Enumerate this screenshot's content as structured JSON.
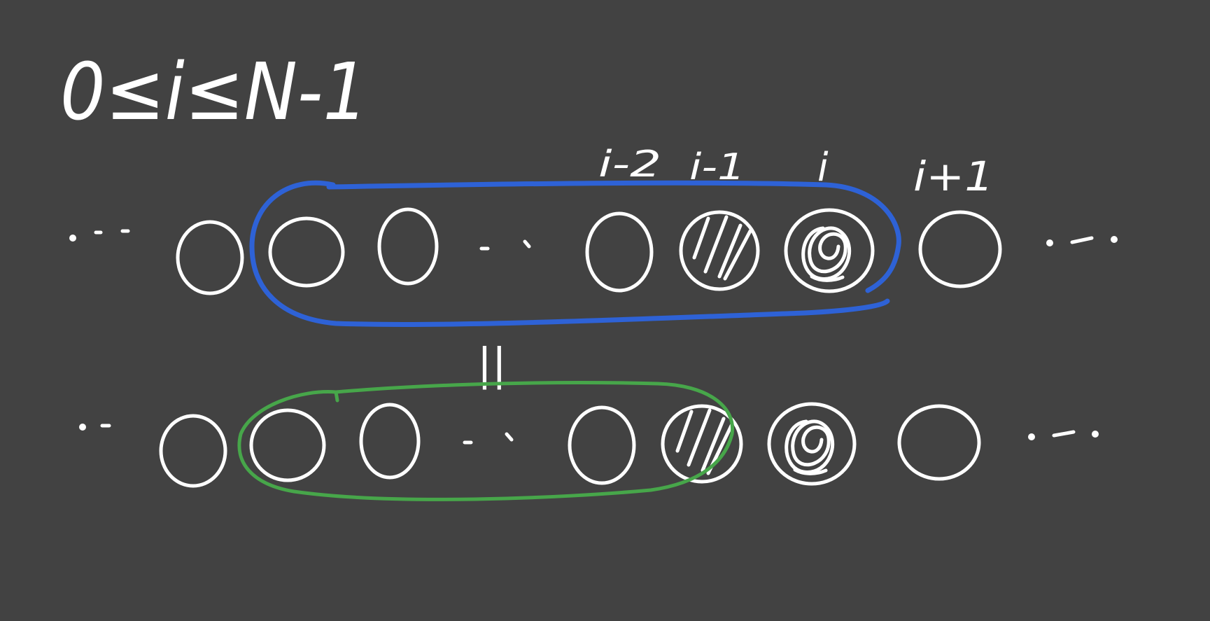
{
  "colors": {
    "background": "#424242",
    "ink": "#ffffff",
    "upper_loop": "#2e62d6",
    "lower_loop": "#47a64a"
  },
  "condition": {
    "text": "0≤i≤N-1"
  },
  "index_labels": {
    "i_minus_2": "i-2",
    "i_minus_1": "i-1",
    "i": "i",
    "i_plus_1": "i+1"
  },
  "equals_mark": "||",
  "rows": [
    {
      "name": "upper",
      "nodes": [
        "empty",
        "empty",
        "empty",
        "ellipsis",
        "empty",
        "hatched",
        "spiral",
        "empty"
      ],
      "loop_color": "upper_loop"
    },
    {
      "name": "lower",
      "nodes": [
        "empty",
        "empty",
        "empty",
        "ellipsis",
        "empty",
        "hatched",
        "spiral",
        "empty"
      ],
      "loop_color": "lower_loop"
    }
  ]
}
